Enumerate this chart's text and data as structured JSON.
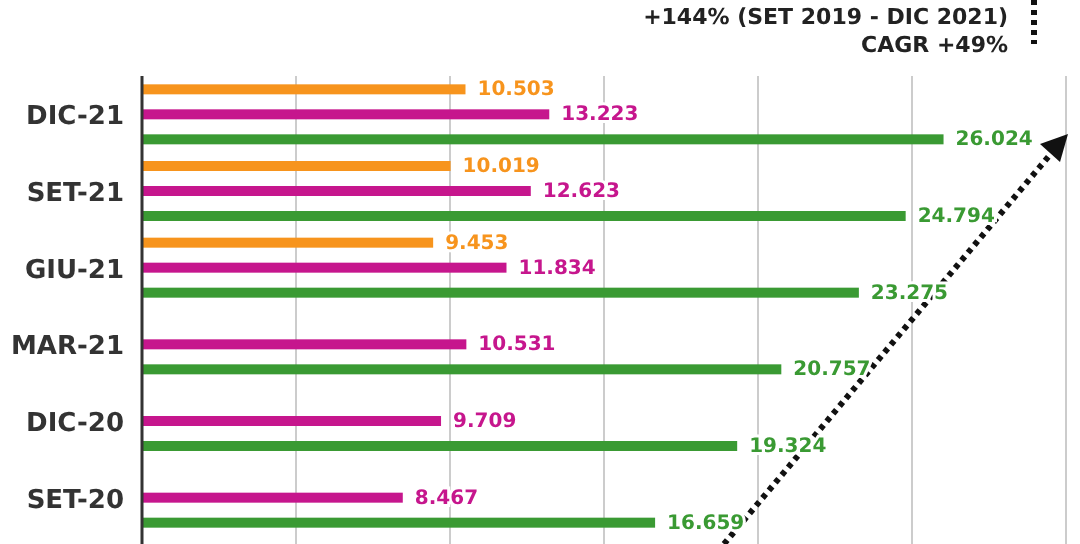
{
  "chart_data": {
    "type": "bar",
    "orientation": "horizontal",
    "categories": [
      "DIC-21",
      "SET-21",
      "GIU-21",
      "MAR-21",
      "DIC-20",
      "SET-20"
    ],
    "series": [
      {
        "color": "#f7941d",
        "values": [
          10.503,
          10.019,
          9.453,
          null,
          null,
          null
        ]
      },
      {
        "color": "#c6168d",
        "values": [
          13.223,
          12.623,
          11.834,
          10.531,
          9.709,
          8.467
        ]
      },
      {
        "color": "#3a9a33",
        "values": [
          26.024,
          24.794,
          23.275,
          20.757,
          19.324,
          16.659
        ]
      }
    ],
    "xlim": [
      0,
      30
    ],
    "xticks": [
      {
        "value": 0,
        "label": null
      },
      {
        "value": 5,
        "label": null
      },
      {
        "value": 10,
        "label": null
      },
      {
        "value": 15,
        "label": null
      },
      {
        "value": 20,
        "label": null
      },
      {
        "value": 25,
        "label": null
      },
      {
        "value": 30,
        "label": null
      }
    ],
    "grid": "x",
    "tick_labels": "y",
    "data_labels": true,
    "annotations": [
      "+144% (SET 2019 - DIC 2021)",
      "CAGR +49%"
    ]
  }
}
